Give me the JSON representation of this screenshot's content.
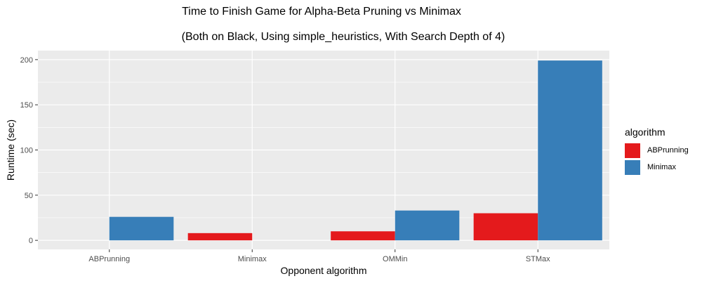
{
  "chart_data": {
    "type": "bar",
    "title": "Time to Finish Game for Alpha-Beta Pruning vs Minimax",
    "subtitle": "(Both on Black, Using simple_heuristics, With Search Depth of 4)",
    "xlabel": "Opponent algorithm",
    "ylabel": "Runtime (sec)",
    "categories": [
      "ABPrunning",
      "Minimax",
      "OMMin",
      "STMax"
    ],
    "yticks": [
      0,
      50,
      100,
      150,
      200
    ],
    "ylim": [
      -10,
      210
    ],
    "legend": {
      "title": "algorithm",
      "placement": "right"
    },
    "series": [
      {
        "name": "ABPrunning",
        "color": "#e41a1c",
        "values": [
          null,
          8,
          10,
          30
        ]
      },
      {
        "name": "Minimax",
        "color": "#377eb8",
        "values": [
          26,
          null,
          33,
          199
        ]
      }
    ],
    "grid": true,
    "panel_background": "#ebebeb"
  }
}
